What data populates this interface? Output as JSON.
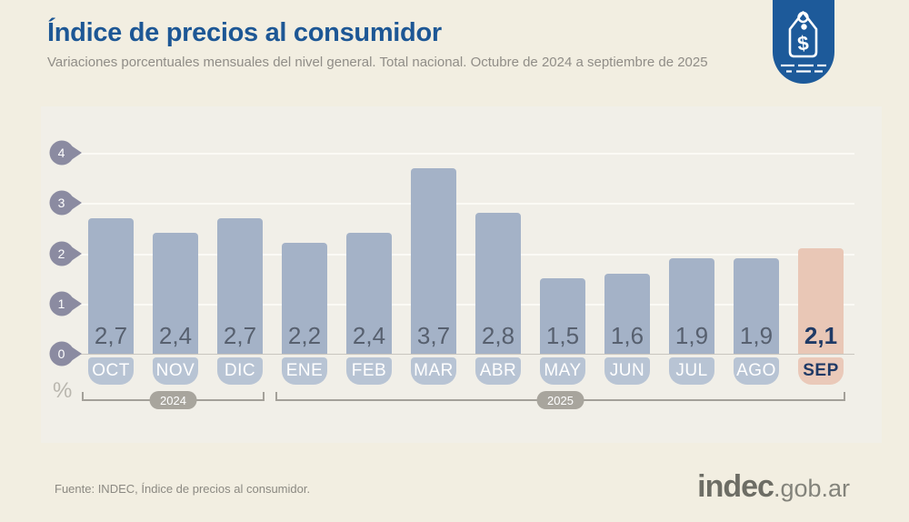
{
  "header": {
    "title": "Índice de precios al consumidor",
    "subtitle": "Variaciones porcentuales mensuales del nivel general. Total nacional. Octubre de 2024 a septiembre de 2025"
  },
  "badge": {
    "icon": "price-tag-icon",
    "symbol": "$"
  },
  "chart_data": {
    "type": "bar",
    "title": "Índice de precios al consumidor",
    "subtitle": "Variaciones porcentuales mensuales del nivel general. Total nacional. Octubre de 2024 a septiembre de 2025",
    "unit_label": "%",
    "categories": [
      "OCT",
      "NOV",
      "DIC",
      "ENE",
      "FEB",
      "MAR",
      "ABR",
      "MAY",
      "JUN",
      "JUL",
      "AGO",
      "SEP"
    ],
    "values": [
      2.7,
      2.4,
      2.7,
      2.2,
      2.4,
      3.7,
      2.8,
      1.5,
      1.6,
      1.9,
      1.9,
      2.1
    ],
    "value_labels": [
      "2,7",
      "2,4",
      "2,7",
      "2,2",
      "2,4",
      "3,7",
      "2,8",
      "1,5",
      "1,6",
      "1,9",
      "1,9",
      "2,1"
    ],
    "highlight_index": 11,
    "ylim": [
      0,
      4
    ],
    "yticks": [
      0,
      1,
      2,
      3,
      4
    ],
    "grid": true,
    "legend": "none",
    "year_groups": [
      {
        "label": "2024",
        "start": 0,
        "end": 2
      },
      {
        "label": "2025",
        "start": 3,
        "end": 11
      }
    ]
  },
  "footer": {
    "source": "Fuente: INDEC, Índice de precios al consumidor.",
    "logo_primary": "indec",
    "logo_secondary": ".gob.ar"
  },
  "colors": {
    "accent_blue": "#1d5795",
    "badge_blue": "#1d5a9a",
    "bar": "#a4b2c7",
    "bar_highlight": "#e9c7b6",
    "month_pill": "#b8c4d4",
    "month_pill_highlight": "#eac9b9",
    "value_text": "#57606f",
    "highlight_text": "#1f3a66",
    "ytick_marker": "#8b8ba1",
    "year_pill": "#a8a59d",
    "page_bg": "#f2eee1",
    "panel_bg": "#f1efe8"
  }
}
